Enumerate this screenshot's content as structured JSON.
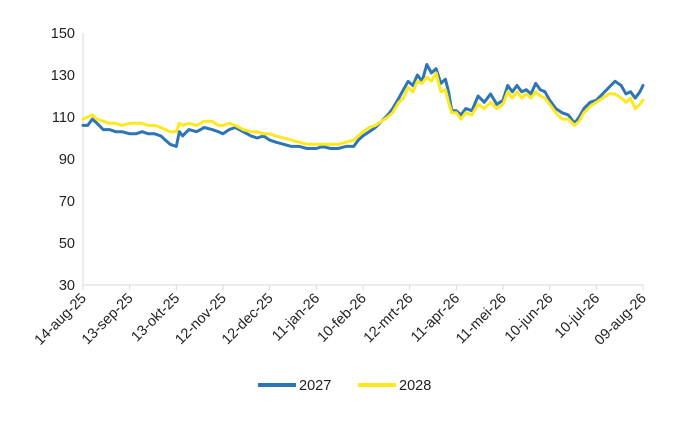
{
  "chart_data": {
    "type": "line",
    "title": "",
    "xlabel": "",
    "ylabel": "",
    "ylim": [
      30,
      150
    ],
    "yticks": [
      30,
      50,
      70,
      90,
      110,
      130,
      150
    ],
    "xlim": [
      "2025-08-14",
      "2026-08-09"
    ],
    "xticks": [
      "14-aug-25",
      "13-sep-25",
      "13-okt-25",
      "12-nov-25",
      "12-dec-25",
      "11-jan-26",
      "10-feb-26",
      "12-mrt-26",
      "11-apr-26",
      "11-mei-26",
      "10-jun-26",
      "10-jul-26",
      "09-aug-26"
    ],
    "xtick_dates": [
      "2025-08-14",
      "2025-09-13",
      "2025-10-13",
      "2025-11-12",
      "2025-12-12",
      "2026-01-11",
      "2026-02-10",
      "2026-03-12",
      "2026-04-11",
      "2026-05-11",
      "2026-06-10",
      "2026-07-10",
      "2026-08-09"
    ],
    "grid": false,
    "legend_position": "bottom",
    "series": [
      {
        "name": "2027",
        "color": "#2E75B6",
        "x": [
          "2025-08-14",
          "2025-08-17",
          "2025-08-20",
          "2025-08-23",
          "2025-08-27",
          "2025-08-31",
          "2025-09-04",
          "2025-09-08",
          "2025-09-13",
          "2025-09-17",
          "2025-09-21",
          "2025-09-25",
          "2025-09-29",
          "2025-10-03",
          "2025-10-06",
          "2025-10-09",
          "2025-10-13",
          "2025-10-15",
          "2025-10-17",
          "2025-10-21",
          "2025-10-26",
          "2025-10-31",
          "2025-11-05",
          "2025-11-09",
          "2025-11-12",
          "2025-11-16",
          "2025-11-20",
          "2025-11-25",
          "2025-11-30",
          "2025-12-04",
          "2025-12-08",
          "2025-12-12",
          "2025-12-16",
          "2025-12-21",
          "2025-12-26",
          "2025-12-31",
          "2026-01-05",
          "2026-01-11",
          "2026-01-15",
          "2026-01-20",
          "2026-01-25",
          "2026-01-30",
          "2026-02-04",
          "2026-02-07",
          "2026-02-10",
          "2026-02-14",
          "2026-02-18",
          "2026-02-22",
          "2026-02-26",
          "2026-03-01",
          "2026-03-05",
          "2026-03-08",
          "2026-03-11",
          "2026-03-14",
          "2026-03-17",
          "2026-03-20",
          "2026-03-23",
          "2026-03-26",
          "2026-03-29",
          "2026-04-01",
          "2026-04-04",
          "2026-04-06",
          "2026-04-08",
          "2026-04-11",
          "2026-04-14",
          "2026-04-17",
          "2026-04-21",
          "2026-04-25",
          "2026-04-29",
          "2026-05-03",
          "2026-05-07",
          "2026-05-11",
          "2026-05-14",
          "2026-05-17",
          "2026-05-20",
          "2026-05-23",
          "2026-05-26",
          "2026-05-29",
          "2026-06-01",
          "2026-06-04",
          "2026-06-07",
          "2026-06-10",
          "2026-06-14",
          "2026-06-18",
          "2026-06-22",
          "2026-06-26",
          "2026-06-29",
          "2026-07-02",
          "2026-07-06",
          "2026-07-10",
          "2026-07-14",
          "2026-07-18",
          "2026-07-22",
          "2026-07-26",
          "2026-07-29",
          "2026-08-01",
          "2026-08-04",
          "2026-08-07",
          "2026-08-09"
        ],
        "y": [
          106,
          106,
          109,
          107,
          104,
          104,
          103,
          103,
          102,
          102,
          103,
          102,
          102,
          101,
          99,
          97,
          96,
          103,
          101,
          104,
          103,
          105,
          104,
          103,
          102,
          104,
          105,
          103,
          101,
          100,
          101,
          99,
          98,
          97,
          96,
          96,
          95,
          95,
          96,
          95,
          95,
          96,
          96,
          99,
          101,
          103,
          105,
          108,
          111,
          114,
          119,
          123,
          127,
          125,
          130,
          127,
          135,
          131,
          133,
          126,
          128,
          122,
          113,
          113,
          111,
          114,
          113,
          120,
          117,
          121,
          116,
          118,
          125,
          122,
          125,
          122,
          123,
          121,
          126,
          123,
          122,
          118,
          114,
          112,
          111,
          107,
          110,
          114,
          117,
          118,
          121,
          124,
          127,
          125,
          121,
          122,
          119,
          122,
          125
        ]
      },
      {
        "name": "2028",
        "color": "#FFE81F",
        "x": [
          "2025-08-14",
          "2025-08-17",
          "2025-08-20",
          "2025-08-23",
          "2025-08-27",
          "2025-08-31",
          "2025-09-04",
          "2025-09-08",
          "2025-09-13",
          "2025-09-17",
          "2025-09-21",
          "2025-09-25",
          "2025-09-29",
          "2025-10-03",
          "2025-10-06",
          "2025-10-09",
          "2025-10-13",
          "2025-10-15",
          "2025-10-17",
          "2025-10-21",
          "2025-10-26",
          "2025-10-31",
          "2025-11-05",
          "2025-11-09",
          "2025-11-12",
          "2025-11-16",
          "2025-11-20",
          "2025-11-25",
          "2025-11-30",
          "2025-12-04",
          "2025-12-08",
          "2025-12-12",
          "2025-12-16",
          "2025-12-21",
          "2025-12-26",
          "2025-12-31",
          "2026-01-05",
          "2026-01-11",
          "2026-01-15",
          "2026-01-20",
          "2026-01-25",
          "2026-01-30",
          "2026-02-04",
          "2026-02-07",
          "2026-02-10",
          "2026-02-14",
          "2026-02-18",
          "2026-02-22",
          "2026-02-26",
          "2026-03-01",
          "2026-03-05",
          "2026-03-08",
          "2026-03-11",
          "2026-03-14",
          "2026-03-17",
          "2026-03-20",
          "2026-03-23",
          "2026-03-26",
          "2026-03-29",
          "2026-04-01",
          "2026-04-04",
          "2026-04-06",
          "2026-04-08",
          "2026-04-11",
          "2026-04-14",
          "2026-04-17",
          "2026-04-21",
          "2026-04-25",
          "2026-04-29",
          "2026-05-03",
          "2026-05-07",
          "2026-05-11",
          "2026-05-14",
          "2026-05-17",
          "2026-05-20",
          "2026-05-23",
          "2026-05-26",
          "2026-05-29",
          "2026-06-01",
          "2026-06-04",
          "2026-06-07",
          "2026-06-10",
          "2026-06-14",
          "2026-06-18",
          "2026-06-22",
          "2026-06-26",
          "2026-06-29",
          "2026-07-02",
          "2026-07-06",
          "2026-07-10",
          "2026-07-14",
          "2026-07-18",
          "2026-07-22",
          "2026-07-26",
          "2026-07-29",
          "2026-08-01",
          "2026-08-04",
          "2026-08-07",
          "2026-08-09"
        ],
        "y": [
          109,
          110,
          111,
          109,
          108,
          107,
          107,
          106,
          107,
          107,
          107,
          106,
          106,
          105,
          104,
          103,
          103,
          107,
          106,
          107,
          106,
          108,
          108,
          106,
          106,
          107,
          106,
          104,
          103,
          103,
          102,
          102,
          101,
          100,
          99,
          98,
          97,
          97,
          97,
          97,
          97,
          98,
          99,
          101,
          103,
          105,
          106,
          108,
          110,
          112,
          117,
          119,
          124,
          122,
          127,
          126,
          129,
          127,
          131,
          122,
          123,
          117,
          112,
          112,
          109,
          112,
          111,
          116,
          114,
          117,
          114,
          116,
          122,
          119,
          122,
          119,
          121,
          119,
          122,
          120,
          119,
          116,
          112,
          109,
          109,
          106,
          108,
          112,
          115,
          117,
          119,
          121,
          121,
          119,
          117,
          119,
          114,
          116,
          118
        ]
      }
    ]
  }
}
